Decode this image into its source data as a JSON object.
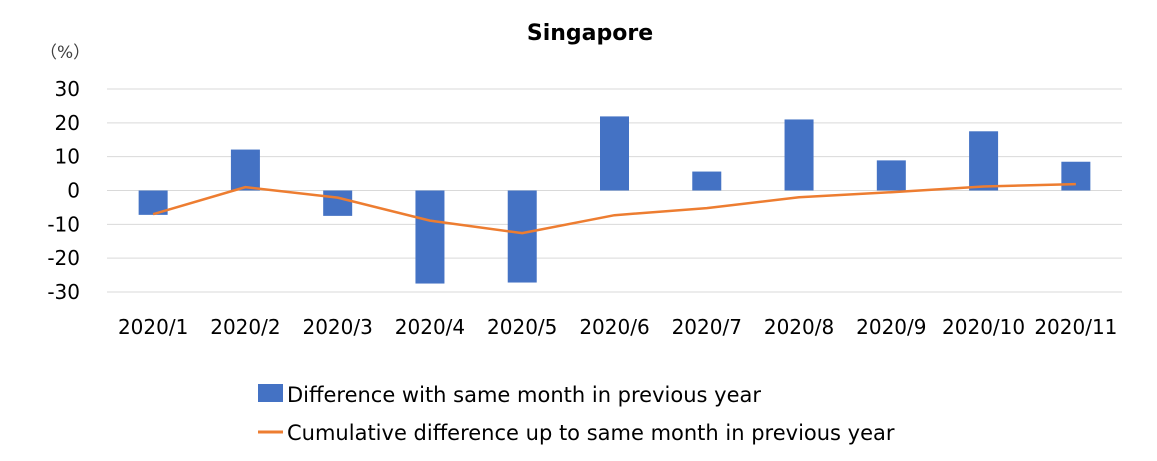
{
  "chart_data": {
    "type": "bar",
    "title": "Singapore",
    "unit_label": "（%）",
    "categories": [
      "2020/1",
      "2020/2",
      "2020/3",
      "2020/4",
      "2020/5",
      "2020/6",
      "2020/7",
      "2020/8",
      "2020/9",
      "2020/10",
      "2020/11"
    ],
    "series": [
      {
        "name": "Difference with same month in previous year",
        "type": "bar",
        "color": "#4472C4",
        "values": [
          -7.2,
          12.1,
          -7.5,
          -27.5,
          -27.2,
          21.9,
          5.6,
          21.0,
          8.9,
          17.5,
          8.5
        ]
      },
      {
        "name": "Cumulative difference up to same month in previous year",
        "type": "line",
        "color": "#ED7D31",
        "values": [
          -7.0,
          1.0,
          -2.1,
          -8.9,
          -12.6,
          -7.3,
          -5.2,
          -2.0,
          -0.5,
          1.2,
          1.9
        ]
      }
    ],
    "ylim": [
      -30,
      30
    ],
    "yticks": [
      30,
      20,
      10,
      0,
      -10,
      -20,
      -30
    ],
    "grid": true,
    "legend_position": "bottom"
  }
}
